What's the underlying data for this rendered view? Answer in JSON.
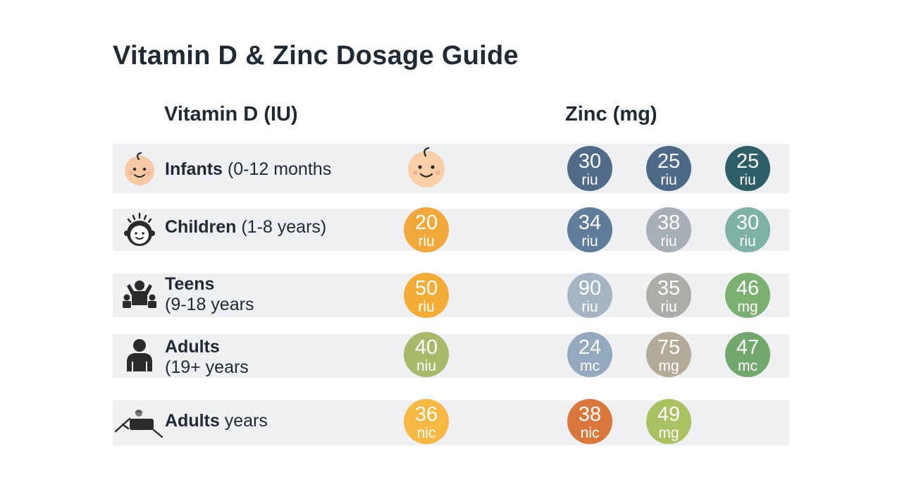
{
  "title": "Vitamin D & Zinc Dosage Guide",
  "headers": {
    "vitamin_d": "Vitamin D (IU)",
    "zinc": "Zinc (mg)"
  },
  "rows": [
    {
      "icon": "baby-face-icon",
      "label_bold": "Infants",
      "label_rest": " (0-12 months",
      "label_line2": "",
      "vitamin_d": null,
      "vitamin_d_icon": "baby-face-icon",
      "zinc": [
        {
          "num": "30",
          "unit": "riu",
          "color": "#4f6b87"
        },
        {
          "num": "25",
          "unit": "riu",
          "color": "#4c6a88"
        },
        {
          "num": "25",
          "unit": "riu",
          "color": "#2f5f66"
        }
      ]
    },
    {
      "icon": "child-face-icon",
      "label_bold": "Children",
      "label_rest": " (1-8 years)",
      "label_line2": "",
      "vitamin_d": {
        "num": "20",
        "unit": "riu",
        "color": "#f1a83a"
      },
      "zinc": [
        {
          "num": "34",
          "unit": "riu",
          "color": "#5f7d9b"
        },
        {
          "num": "38",
          "unit": "riu",
          "color": "#a7aeb6"
        },
        {
          "num": "30",
          "unit": "riu",
          "color": "#7fb2a6"
        }
      ]
    },
    {
      "icon": "teens-group-icon",
      "label_bold": "Teens",
      "label_rest": "",
      "label_line2": "(9-18 years",
      "vitamin_d": {
        "num": "50",
        "unit": "riu",
        "color": "#f2ac35"
      },
      "zinc": [
        {
          "num": "90",
          "unit": "riu",
          "color": "#a5b4c2"
        },
        {
          "num": "35",
          "unit": "riu",
          "color": "#aeaca8"
        },
        {
          "num": "46",
          "unit": "mg",
          "color": "#7bb070"
        }
      ]
    },
    {
      "icon": "adult-person-icon",
      "label_bold": "Adults",
      "label_rest": "",
      "label_line2": "(19+ years",
      "vitamin_d": {
        "num": "40",
        "unit": "niu",
        "color": "#a6ba6a"
      },
      "zinc": [
        {
          "num": "24",
          "unit": "mc",
          "color": "#95a9be"
        },
        {
          "num": "75",
          "unit": "mg",
          "color": "#b3ab98"
        },
        {
          "num": "47",
          "unit": "mc",
          "color": "#72a86e"
        }
      ]
    },
    {
      "icon": "elderly-reclining-icon",
      "label_bold": "Adults",
      "label_rest": " years",
      "label_line2": "",
      "vitamin_d": {
        "num": "36",
        "unit": "nic",
        "color": "#f4b843"
      },
      "zinc": [
        {
          "num": "38",
          "unit": "nic",
          "color": "#d9773d"
        },
        {
          "num": "49",
          "unit": "mg",
          "color": "#a9c160"
        }
      ]
    }
  ]
}
